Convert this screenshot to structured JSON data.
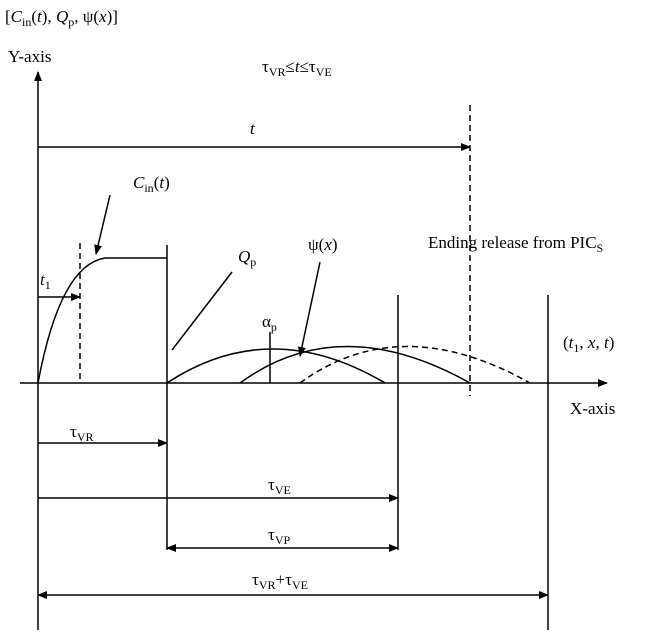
{
  "y_axis_quantities": [
    "[",
    "C",
    "in",
    "(",
    "t",
    "), ",
    "Q",
    "p",
    ", ψ(",
    "x",
    ")]"
  ],
  "y_axis_label": "Y-axis",
  "x_axis_label": "X-axis",
  "time_range": [
    "τ",
    "VR",
    "≤",
    "t",
    "≤τ",
    "VE"
  ],
  "t_label": "t",
  "cin_label": [
    "C",
    "in",
    "(",
    "t",
    ")"
  ],
  "t1_label": [
    "t",
    "1"
  ],
  "qp_label": [
    "Q",
    "p"
  ],
  "psi_label": [
    "ψ(",
    "x",
    ")"
  ],
  "alpha_label": [
    "α",
    "p"
  ],
  "ending_label": [
    "Ending release from PIC",
    "S"
  ],
  "point_label": [
    "(",
    "t",
    "1",
    ", ",
    "x",
    ", ",
    "t",
    ")"
  ],
  "tau_vr_label": [
    "τ",
    "VR"
  ],
  "tau_ve_label": [
    "τ",
    "VE"
  ],
  "tau_vp_label": [
    "τ",
    "VP"
  ],
  "tau_sum_label": [
    "τ",
    "VR",
    "+τ",
    "VE"
  ]
}
